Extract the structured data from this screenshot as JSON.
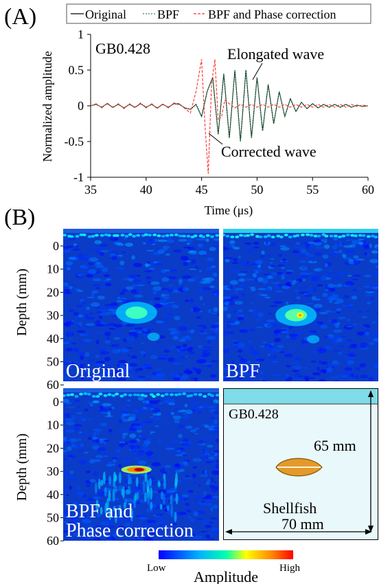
{
  "panel_a_label": "(A)",
  "panel_b_label": "(B)",
  "colors": {
    "original": "#000000",
    "bpf": "#2e8b57",
    "phase": "#ff3030",
    "schematic_fill": "#e8f8fb",
    "schematic_band": "#7fdce8",
    "shellfish": "#e39a2a"
  },
  "chart_data": [
    {
      "type": "line",
      "x_label": "Time (μs)",
      "y_label": "Normalized amplitude",
      "xlim": [
        35,
        60
      ],
      "ylim": [
        -1,
        1
      ],
      "x_ticks": [
        35,
        40,
        45,
        50,
        55,
        60
      ],
      "y_ticks": [
        1,
        0.5,
        0,
        -0.5,
        -1
      ],
      "y_tick_labels": [
        "1",
        "0.5",
        "0",
        "-0.5",
        "-1"
      ],
      "legend_position": "top",
      "annotation_sample": "GB0.428",
      "annotation_elongated": "Elongated wave",
      "annotation_corrected": "Corrected wave",
      "series": [
        {
          "name": "Original",
          "x": [
            35,
            35.5,
            36,
            36.5,
            37,
            37.5,
            38,
            38.5,
            39,
            39.5,
            40,
            40.5,
            41,
            41.5,
            42,
            42.5,
            43,
            43.5,
            44,
            44.5,
            45,
            45.5,
            46,
            46.5,
            47,
            47.5,
            48,
            48.5,
            49,
            49.5,
            50,
            50.5,
            51,
            51.5,
            52,
            52.5,
            53,
            53.5,
            54,
            54.5,
            55,
            55.5,
            56,
            56.5,
            57,
            57.5,
            58,
            58.5,
            59,
            59.5,
            60
          ],
          "y": [
            0,
            0.02,
            -0.02,
            0.03,
            -0.02,
            0.02,
            -0.03,
            0.02,
            -0.02,
            0.03,
            -0.02,
            0.02,
            -0.03,
            0.02,
            -0.02,
            0.03,
            0.02,
            -0.03,
            -0.05,
            0.02,
            -0.15,
            0.2,
            0.4,
            -0.4,
            0.45,
            -0.45,
            0.5,
            -0.5,
            0.5,
            -0.45,
            0.4,
            -0.35,
            0.3,
            -0.25,
            0.2,
            -0.15,
            0.1,
            -0.08,
            0.05,
            -0.04,
            0.03,
            -0.03,
            0.02,
            -0.02,
            0.02,
            -0.02,
            0.02,
            -0.02,
            0.01,
            -0.01,
            0
          ]
        },
        {
          "name": "BPF",
          "x": [
            35,
            35.5,
            36,
            36.5,
            37,
            37.5,
            38,
            38.5,
            39,
            39.5,
            40,
            40.5,
            41,
            41.5,
            42,
            42.5,
            43,
            43.5,
            44,
            44.5,
            45,
            45.5,
            46,
            46.5,
            47,
            47.5,
            48,
            48.5,
            49,
            49.5,
            50,
            50.5,
            51,
            51.5,
            52,
            52.5,
            53,
            53.5,
            54,
            54.5,
            55,
            55.5,
            56,
            56.5,
            57,
            57.5,
            58,
            58.5,
            59,
            59.5,
            60
          ],
          "y": [
            0,
            0.02,
            -0.02,
            0.03,
            -0.02,
            0.02,
            -0.03,
            0.02,
            -0.02,
            0.03,
            -0.02,
            0.02,
            -0.03,
            0.02,
            -0.02,
            0.03,
            0.02,
            -0.03,
            -0.05,
            0.02,
            -0.15,
            0.2,
            0.4,
            -0.4,
            0.45,
            -0.45,
            0.5,
            -0.5,
            0.5,
            -0.45,
            0.4,
            -0.35,
            0.3,
            -0.25,
            0.2,
            -0.15,
            0.1,
            -0.08,
            0.05,
            -0.04,
            0.03,
            -0.03,
            0.02,
            -0.02,
            0.02,
            -0.02,
            0.02,
            -0.02,
            0.01,
            -0.01,
            0
          ]
        },
        {
          "name": "BPF and Phase correction",
          "x": [
            35,
            35.5,
            36,
            36.5,
            37,
            37.5,
            38,
            38.5,
            39,
            39.5,
            40,
            40.5,
            41,
            41.5,
            42,
            42.5,
            43,
            43.5,
            44,
            44.5,
            45,
            45.3,
            45.6,
            45.9,
            46.2,
            46.5,
            46.8,
            47.1,
            47.5,
            48,
            48.5,
            49,
            49.5,
            50,
            50.5,
            51,
            51.5,
            52,
            52.5,
            53,
            53.5,
            54,
            54.5,
            55,
            55.5,
            56,
            56.5,
            57,
            57.5,
            58,
            58.5,
            59,
            59.5,
            60
          ],
          "y": [
            0,
            0.03,
            -0.03,
            0.04,
            -0.03,
            0.03,
            -0.04,
            0.03,
            -0.03,
            0.04,
            -0.03,
            0.03,
            -0.04,
            0.03,
            -0.03,
            0.04,
            0.03,
            -0.04,
            -0.1,
            0.2,
            0.65,
            -0.25,
            -0.95,
            0.3,
            0.65,
            -0.2,
            -0.15,
            0.08,
            0.03,
            -0.03,
            0.02,
            -0.02,
            0.02,
            -0.02,
            0.02,
            -0.02,
            0.02,
            -0.02,
            0.02,
            -0.02,
            0.02,
            -0.02,
            0.02,
            -0.02,
            0.02,
            -0.02,
            0.02,
            -0.02,
            0.02,
            -0.02,
            0.02,
            -0.01,
            0.01,
            0
          ]
        }
      ]
    },
    {
      "type": "heatmap",
      "y_label": "Depth (mm)",
      "depth_ticks": [
        0,
        10,
        20,
        30,
        40,
        50,
        60
      ],
      "panels": [
        {
          "label": "Original",
          "hot_spots": [
            {
              "depth": 32,
              "strength": 0.35
            }
          ]
        },
        {
          "label": "BPF",
          "hot_spots": [
            {
              "depth": 33,
              "strength": 0.6
            }
          ]
        },
        {
          "label": "BPF and\nPhase correction",
          "hot_spots": [
            {
              "depth": 31,
              "strength": 1.0
            }
          ]
        }
      ],
      "colorbar": {
        "title": "Amplitude",
        "low_label": "Low",
        "high_label": "High"
      }
    }
  ],
  "schematic": {
    "sample": "GB0.428",
    "height_label": "65 mm",
    "width_label": "70 mm",
    "object_label": "Shellfish"
  }
}
